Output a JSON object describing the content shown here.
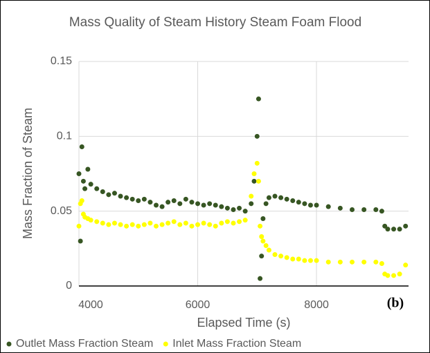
{
  "chart_data": {
    "type": "scatter",
    "title": "Mass Quality of Steam History Steam Foam Flood",
    "x_label": "Elapsed Time (s)",
    "y_label": "Mass Fraction of Steam",
    "annotation": "(b)",
    "x": [
      4000,
      4025,
      4050,
      4075,
      4100,
      4150,
      4200,
      4300,
      4400,
      4500,
      4600,
      4700,
      4800,
      4900,
      5000,
      5100,
      5200,
      5300,
      5400,
      5500,
      5600,
      5700,
      5800,
      5900,
      6000,
      6100,
      6200,
      6300,
      6400,
      6500,
      6600,
      6700,
      6800,
      6900,
      6950,
      7000,
      7025,
      7050,
      7075,
      7100,
      7150,
      7200,
      7300,
      7400,
      7500,
      7600,
      7700,
      7800,
      7900,
      8000,
      8200,
      8400,
      8600,
      8800,
      9000,
      9100,
      9150,
      9200,
      9300,
      9400,
      9500
    ],
    "series": [
      {
        "name": "Outlet Mass Fraction Steam",
        "color": "#375623",
        "values": [
          0.075,
          0.03,
          0.093,
          0.07,
          0.065,
          0.078,
          0.068,
          0.065,
          0.063,
          0.061,
          0.062,
          0.06,
          0.059,
          0.058,
          0.057,
          0.058,
          0.056,
          0.054,
          0.053,
          0.056,
          0.057,
          0.055,
          0.058,
          0.056,
          0.055,
          0.054,
          0.055,
          0.054,
          0.053,
          0.052,
          0.051,
          0.052,
          0.05,
          0.055,
          0.07,
          0.1,
          0.125,
          0.005,
          0.02,
          0.045,
          0.055,
          0.059,
          0.06,
          0.059,
          0.058,
          0.057,
          0.056,
          0.055,
          0.054,
          0.054,
          0.053,
          0.052,
          0.051,
          0.051,
          0.051,
          0.05,
          0.04,
          0.038,
          0.038,
          0.038,
          0.04
        ]
      },
      {
        "name": "Inlet Mass Fraction Steam",
        "color": "#ffff00",
        "values": [
          0.04,
          0.055,
          0.057,
          0.048,
          0.046,
          0.045,
          0.044,
          0.043,
          0.042,
          0.041,
          0.042,
          0.041,
          0.04,
          0.041,
          0.04,
          0.041,
          0.042,
          0.04,
          0.041,
          0.042,
          0.043,
          0.041,
          0.042,
          0.04,
          0.041,
          0.042,
          0.041,
          0.04,
          0.042,
          0.043,
          0.042,
          0.043,
          0.044,
          0.06,
          0.075,
          0.082,
          0.07,
          0.04,
          0.033,
          0.03,
          0.027,
          0.024,
          0.021,
          0.02,
          0.019,
          0.018,
          0.018,
          0.017,
          0.017,
          0.017,
          0.016,
          0.016,
          0.016,
          0.016,
          0.016,
          0.015,
          0.008,
          0.007,
          0.007,
          0.008,
          0.014
        ]
      }
    ],
    "xlim": [
      4000,
      9550
    ],
    "ylim": [
      0,
      0.15
    ],
    "xticks": [
      4000,
      6000,
      8000
    ],
    "yticks": [
      0,
      0.05,
      0.1,
      0.15
    ],
    "grid": true,
    "legend": "bottom"
  }
}
